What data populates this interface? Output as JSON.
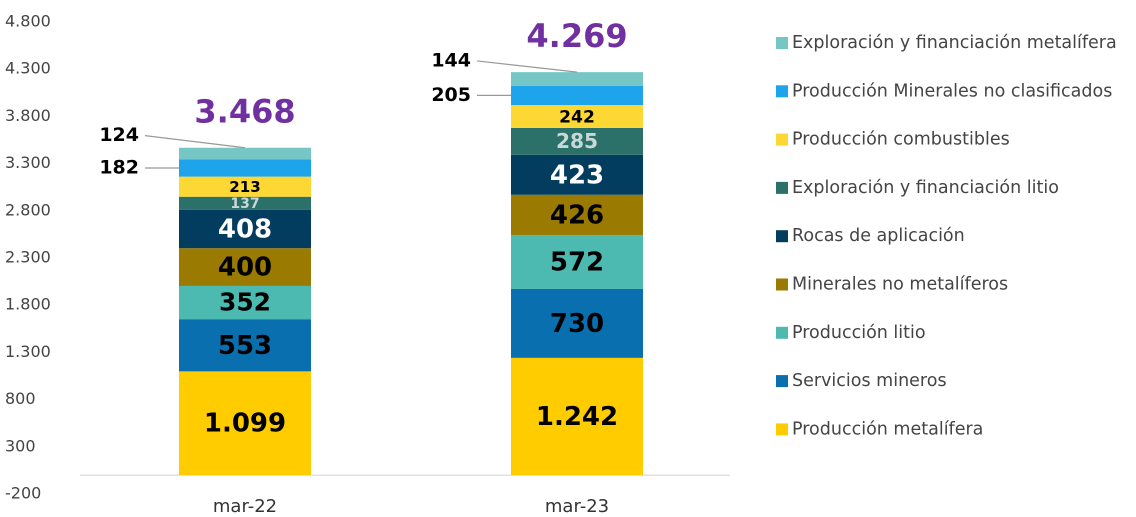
{
  "chart_data": {
    "type": "stacked_bar",
    "categories": [
      "mar-22",
      "mar-23"
    ],
    "ylim": [
      -200,
      4800
    ],
    "yticks": [
      -200,
      300,
      800,
      {
        "value": 1300,
        "label": "1.300"
      },
      {
        "value": 1800,
        "label": "1.800"
      },
      {
        "value": 2300,
        "label": "2.300"
      },
      {
        "value": 2800,
        "label": "2.800"
      },
      {
        "value": 3300,
        "label": "3.300"
      },
      {
        "value": 3800,
        "label": "3.800"
      },
      {
        "value": 4300,
        "label": "4.300"
      },
      {
        "value": 4800,
        "label": "4.800"
      }
    ],
    "series": [
      {
        "name": "Producción metalífera",
        "color": "#ffcc00",
        "label_color": "#000000",
        "values": [
          1099,
          1242
        ],
        "value_labels": [
          "1.099",
          "1.242"
        ]
      },
      {
        "name": "Servicios mineros",
        "color": "#0a6fae",
        "label_color": "#000000",
        "values": [
          553,
          730
        ]
      },
      {
        "name": "Producción litio",
        "color": "#4dbab1",
        "label_color": "#000000",
        "values": [
          352,
          572
        ]
      },
      {
        "name": "Minerales no metalíferos",
        "color": "#9a7a00",
        "label_color": "#000000",
        "values": [
          400,
          426
        ]
      },
      {
        "name": "Rocas de aplicación",
        "color": "#023d5f",
        "label_color": "#ffffff",
        "values": [
          408,
          423
        ]
      },
      {
        "name": "Exploración y financiación litio",
        "color": "#2c706a",
        "label_color": "#c8d8d8",
        "values": [
          137,
          285
        ]
      },
      {
        "name": "Producción combustibles",
        "color": "#fdd835",
        "label_color": "#000000",
        "values": [
          213,
          242
        ]
      },
      {
        "name": "Producción Minerales no clasificados",
        "color": "#1ea4ea",
        "label_color": "#000000",
        "values": [
          182,
          205
        ],
        "label_outside": true
      },
      {
        "name": "Exploración y financiación metalífera",
        "color": "#76c6c6",
        "label_color": "#000000",
        "values": [
          124,
          144
        ],
        "label_outside": true
      }
    ],
    "totals": {
      "color": "#7030a0",
      "values": [
        3468,
        4269
      ],
      "value_labels": [
        "3.468",
        "4.269"
      ]
    }
  }
}
